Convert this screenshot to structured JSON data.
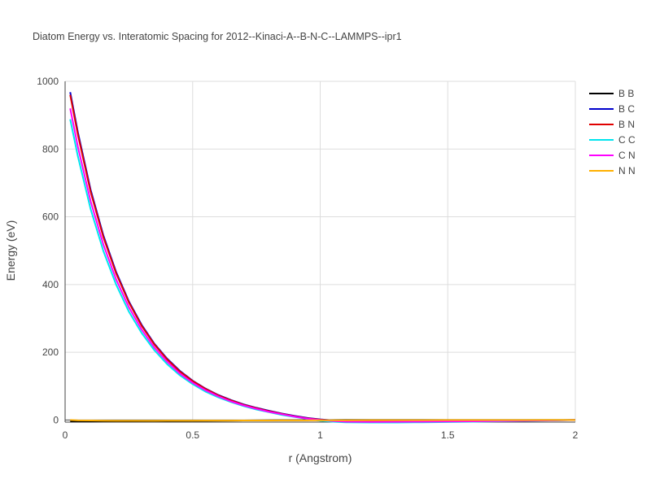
{
  "chart_data": {
    "type": "line",
    "title": "Diatom Energy vs. Interatomic Spacing for 2012--Kinaci-A--B-N-C--LAMMPS--ipr1",
    "xlabel": "r (Angstrom)",
    "ylabel": "Energy (eV)",
    "xlim": [
      0,
      2
    ],
    "ylim": [
      -10,
      1000
    ],
    "xticks": [
      0,
      0.5,
      1,
      1.5,
      2
    ],
    "xtick_labels": [
      "0",
      "0.5",
      "1",
      "1.5",
      "2"
    ],
    "yticks": [
      0,
      200,
      400,
      600,
      800,
      1000
    ],
    "ytick_labels": [
      "0",
      "200",
      "400",
      "600",
      "800",
      "1000"
    ],
    "grid": true,
    "legend_position": "top-right",
    "x": [
      0.02,
      0.05,
      0.1,
      0.15,
      0.2,
      0.25,
      0.3,
      0.35,
      0.4,
      0.45,
      0.5,
      0.55,
      0.6,
      0.65,
      0.7,
      0.75,
      0.8,
      0.85,
      0.9,
      0.95,
      1.0,
      1.05,
      1.1,
      1.2,
      1.3,
      1.4,
      1.5,
      1.6,
      1.7,
      1.8,
      1.9,
      2.0
    ],
    "series": [
      {
        "name": "B B",
        "color": "#000000",
        "values": [
          -4,
          -4,
          -4,
          -3.9,
          -3.8,
          -3.7,
          -3.5,
          -3.3,
          -3.1,
          -2.9,
          -2.6,
          -2.3,
          -2.0,
          -1.7,
          -1.4,
          -1.1,
          -0.8,
          -0.6,
          -0.4,
          -0.3,
          -0.2,
          -0.1,
          0,
          0,
          0,
          0,
          0,
          0,
          0,
          0,
          0,
          0
        ]
      },
      {
        "name": "B C",
        "color": "#0000cc",
        "values": [
          968,
          850,
          680,
          545,
          437,
          350,
          281,
          225,
          181,
          145,
          116,
          93,
          74,
          59,
          46,
          36,
          27,
          19,
          12,
          6,
          2,
          -1,
          -3,
          -3.5,
          -3.5,
          -3.3,
          -3,
          -2.5,
          -1.9,
          -1.3,
          -0.6,
          0
        ]
      },
      {
        "name": "B N",
        "color": "#e00000",
        "values": [
          960,
          843,
          674,
          540,
          433,
          347,
          278,
          223,
          179,
          143,
          115,
          92,
          73,
          58,
          45,
          35,
          26,
          18,
          11,
          5,
          1,
          -2,
          -3.5,
          -4,
          -4,
          -3.8,
          -3.4,
          -2.8,
          -2.1,
          -1.4,
          -0.7,
          0
        ]
      },
      {
        "name": "C C",
        "color": "#00e5ee",
        "values": [
          888,
          779,
          623,
          499,
          400,
          320,
          257,
          206,
          165,
          132,
          106,
          84,
          67,
          53,
          41,
          31,
          23,
          15,
          9,
          3,
          -2,
          -5,
          -7,
          -7.5,
          -7.3,
          -6.8,
          -6,
          -5,
          -3.9,
          -2.7,
          -1.4,
          0
        ]
      },
      {
        "name": "C N",
        "color": "#ff00ff",
        "values": [
          920,
          807,
          646,
          518,
          415,
          333,
          267,
          214,
          172,
          137,
          110,
          88,
          70,
          55,
          43,
          33,
          24,
          17,
          10,
          4,
          0,
          -3,
          -5,
          -5.5,
          -5.4,
          -5,
          -4.4,
          -3.7,
          -2.9,
          -2,
          -1,
          0
        ]
      },
      {
        "name": "N N",
        "color": "#ffb000",
        "values": [
          0,
          -1,
          -1.5,
          -2,
          -2.2,
          -2.3,
          -2.3,
          -2.2,
          -2.1,
          -2,
          -1.9,
          -1.8,
          -1.7,
          -1.6,
          -1.5,
          -1.4,
          -1.3,
          -1.2,
          -1.1,
          -1.0,
          -0.9,
          -0.8,
          -0.7,
          -0.6,
          -0.5,
          -0.4,
          -0.3,
          -0.2,
          -0.15,
          -0.1,
          -0.05,
          0
        ]
      }
    ]
  }
}
